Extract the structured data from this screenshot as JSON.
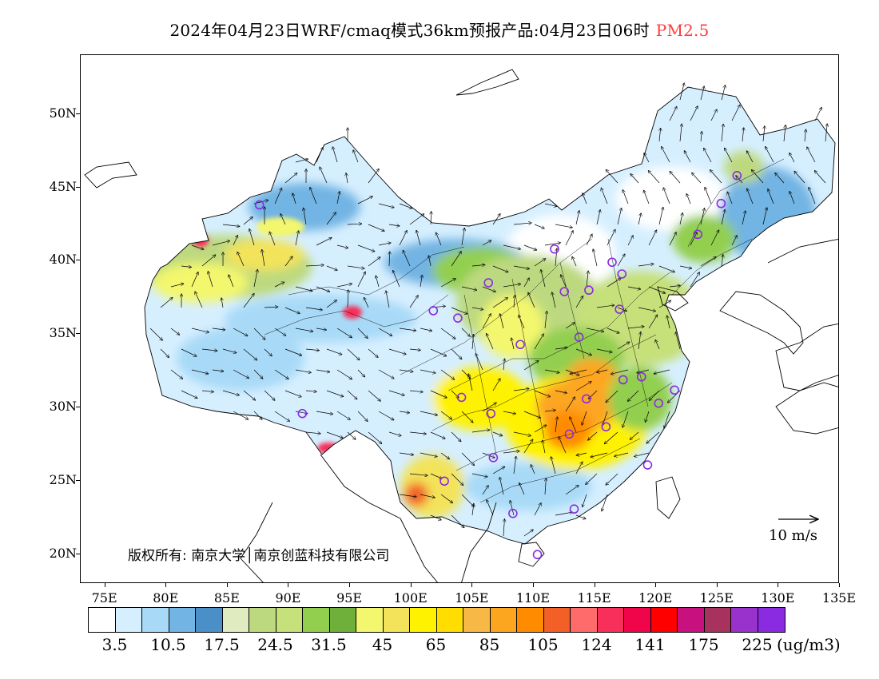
{
  "header": {
    "title": "2024年04月23日WRF/cmaq模式36km预报产品:04月23日06时",
    "product": "PM2.5"
  },
  "axes": {
    "lat_labels": [
      "50N",
      "45N",
      "40N",
      "35N",
      "30N",
      "25N",
      "20N"
    ],
    "lat_values": [
      50,
      45,
      40,
      35,
      30,
      25,
      20
    ],
    "lon_labels": [
      "75E",
      "80E",
      "85E",
      "90E",
      "95E",
      "100E",
      "105E",
      "110E",
      "115E",
      "120E",
      "125E",
      "130E",
      "135E"
    ],
    "lon_values": [
      75,
      80,
      85,
      90,
      95,
      100,
      105,
      110,
      115,
      120,
      125,
      130,
      135
    ],
    "lon_range": [
      73,
      135
    ],
    "lat_range": [
      18,
      54
    ]
  },
  "copyright": "版权所有: 南京大学│南京创蓝科技有限公司",
  "wind_reference": {
    "label": "10 m/s"
  },
  "colorbar": {
    "unit": "(ug/m3)",
    "colors": [
      "#ffffff",
      "#d6efff",
      "#a8daf7",
      "#72b4e3",
      "#4b8fc9",
      "#e0ecc0",
      "#bdd97f",
      "#c6e07a",
      "#93cf4f",
      "#6fb03a",
      "#f3f76d",
      "#f3e35a",
      "#fff200",
      "#ffdd00",
      "#f8b845",
      "#fca620",
      "#ff8c00",
      "#f26027",
      "#ff6b6b",
      "#f72f5a",
      "#f0054a",
      "#ff0000",
      "#c8107e",
      "#a8325e",
      "#9932cc",
      "#8a2be2"
    ],
    "labels": [
      "3.5",
      "10.5",
      "17.5",
      "24.5",
      "31.5",
      "45",
      "65",
      "85",
      "105",
      "124",
      "141",
      "175",
      "225"
    ]
  },
  "stations": [
    {
      "lon": 87.6,
      "lat": 43.8
    },
    {
      "lon": 91.1,
      "lat": 29.6
    },
    {
      "lon": 101.8,
      "lat": 36.6
    },
    {
      "lon": 103.8,
      "lat": 36.1
    },
    {
      "lon": 106.3,
      "lat": 38.5
    },
    {
      "lon": 111.7,
      "lat": 40.8
    },
    {
      "lon": 112.5,
      "lat": 37.9
    },
    {
      "lon": 114.5,
      "lat": 38.0
    },
    {
      "lon": 116.4,
      "lat": 39.9
    },
    {
      "lon": 117.2,
      "lat": 39.1
    },
    {
      "lon": 117.0,
      "lat": 36.7
    },
    {
      "lon": 113.7,
      "lat": 34.8
    },
    {
      "lon": 108.9,
      "lat": 34.3
    },
    {
      "lon": 104.1,
      "lat": 30.7
    },
    {
      "lon": 106.5,
      "lat": 29.6
    },
    {
      "lon": 114.3,
      "lat": 30.6
    },
    {
      "lon": 112.9,
      "lat": 28.2
    },
    {
      "lon": 115.9,
      "lat": 28.7
    },
    {
      "lon": 117.3,
      "lat": 31.9
    },
    {
      "lon": 118.8,
      "lat": 32.1
    },
    {
      "lon": 121.5,
      "lat": 31.2
    },
    {
      "lon": 120.2,
      "lat": 30.3
    },
    {
      "lon": 119.3,
      "lat": 26.1
    },
    {
      "lon": 113.3,
      "lat": 23.1
    },
    {
      "lon": 108.3,
      "lat": 22.8
    },
    {
      "lon": 110.3,
      "lat": 20.0
    },
    {
      "lon": 106.7,
      "lat": 26.6
    },
    {
      "lon": 102.7,
      "lat": 25.0
    },
    {
      "lon": 123.4,
      "lat": 41.8
    },
    {
      "lon": 125.3,
      "lat": 43.9
    },
    {
      "lon": 126.6,
      "lat": 45.8
    }
  ]
}
